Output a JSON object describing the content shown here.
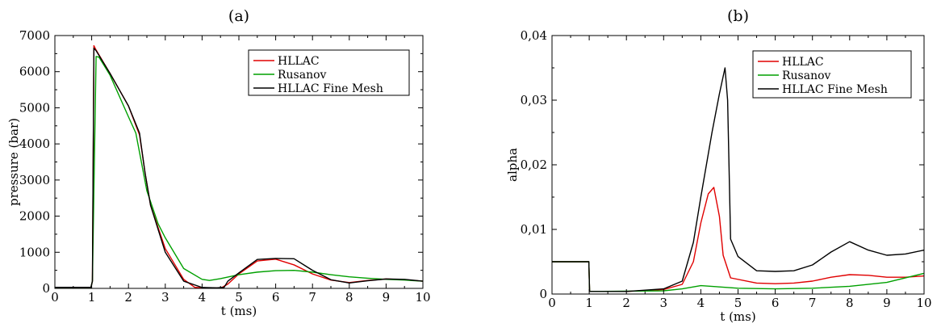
{
  "chart_data": [
    {
      "type": "line",
      "panel_label": "(a)",
      "xlabel": "t (ms)",
      "ylabel": "pressure (bar)",
      "xlim": [
        0,
        10
      ],
      "ylim": [
        0,
        7000
      ],
      "xticks": [
        0,
        1,
        2,
        3,
        4,
        5,
        6,
        7,
        8,
        9,
        10
      ],
      "yticks": [
        0,
        1000,
        2000,
        3000,
        4000,
        5000,
        6000,
        7000
      ],
      "ytick_labels": [
        "0",
        "1000",
        "2000",
        "3000",
        "4000",
        "5000",
        "6000",
        "7000"
      ],
      "grid": false,
      "legend_position": "top-right",
      "series": [
        {
          "name": "HLLAC",
          "color": "#e00000",
          "points": [
            [
              0,
              30
            ],
            [
              0.98,
              30
            ],
            [
              1.02,
              200
            ],
            [
              1.06,
              6720
            ],
            [
              1.12,
              6600
            ],
            [
              1.5,
              5950
            ],
            [
              2.0,
              5050
            ],
            [
              2.3,
              4250
            ],
            [
              2.45,
              3200
            ],
            [
              2.6,
              2300
            ],
            [
              3.0,
              1100
            ],
            [
              3.5,
              250
            ],
            [
              3.8,
              30
            ],
            [
              4.0,
              15
            ],
            [
              4.5,
              10
            ],
            [
              4.55,
              30
            ],
            [
              4.7,
              120
            ],
            [
              5.0,
              400
            ],
            [
              5.5,
              760
            ],
            [
              6.0,
              810
            ],
            [
              6.5,
              650
            ],
            [
              7.0,
              400
            ],
            [
              7.5,
              230
            ],
            [
              8.0,
              160
            ],
            [
              8.5,
              220
            ],
            [
              9.0,
              260
            ],
            [
              9.5,
              240
            ],
            [
              10,
              200
            ]
          ]
        },
        {
          "name": "Rusanov",
          "color": "#00a000",
          "points": [
            [
              0,
              30
            ],
            [
              0.98,
              30
            ],
            [
              1.02,
              200
            ],
            [
              1.12,
              6420
            ],
            [
              1.2,
              6400
            ],
            [
              1.5,
              5900
            ],
            [
              2.0,
              4750
            ],
            [
              2.2,
              4300
            ],
            [
              2.5,
              2700
            ],
            [
              2.8,
              1800
            ],
            [
              3.0,
              1400
            ],
            [
              3.5,
              550
            ],
            [
              4.0,
              250
            ],
            [
              4.2,
              220
            ],
            [
              4.5,
              270
            ],
            [
              5.0,
              380
            ],
            [
              5.5,
              450
            ],
            [
              6.0,
              490
            ],
            [
              6.5,
              500
            ],
            [
              7.0,
              450
            ],
            [
              7.5,
              380
            ],
            [
              8.0,
              320
            ],
            [
              8.5,
              280
            ],
            [
              9.0,
              250
            ],
            [
              9.5,
              230
            ],
            [
              10,
              200
            ]
          ]
        },
        {
          "name": "HLLAC Fine Mesh",
          "color": "#000000",
          "points": [
            [
              0,
              30
            ],
            [
              0.98,
              30
            ],
            [
              1.02,
              200
            ],
            [
              1.06,
              6650
            ],
            [
              1.12,
              6580
            ],
            [
              1.5,
              5950
            ],
            [
              2.0,
              5050
            ],
            [
              2.3,
              4300
            ],
            [
              2.45,
              3200
            ],
            [
              2.6,
              2300
            ],
            [
              3.0,
              1000
            ],
            [
              3.5,
              200
            ],
            [
              4.0,
              25
            ],
            [
              4.4,
              15
            ],
            [
              4.6,
              30
            ],
            [
              4.7,
              200
            ],
            [
              5.0,
              430
            ],
            [
              5.5,
              800
            ],
            [
              6.0,
              830
            ],
            [
              6.5,
              820
            ],
            [
              7.0,
              500
            ],
            [
              7.5,
              240
            ],
            [
              8.0,
              150
            ],
            [
              8.5,
              210
            ],
            [
              9.0,
              260
            ],
            [
              9.5,
              250
            ],
            [
              10,
              200
            ]
          ]
        }
      ]
    },
    {
      "type": "line",
      "panel_label": "(b)",
      "xlabel": "t (ms)",
      "ylabel": "alpha",
      "xlim": [
        0,
        10
      ],
      "ylim": [
        0,
        0.04
      ],
      "xticks": [
        0,
        1,
        2,
        3,
        4,
        5,
        6,
        7,
        8,
        9,
        10
      ],
      "yticks": [
        0,
        0.01,
        0.02,
        0.03,
        0.04
      ],
      "ytick_labels": [
        "0",
        "0,01",
        "0,02",
        "0,03",
        "0,04"
      ],
      "grid": false,
      "legend_position": "top-right",
      "series": [
        {
          "name": "HLLAC",
          "color": "#e00000",
          "points": [
            [
              0,
              0.005
            ],
            [
              0.99,
              0.005
            ],
            [
              1.01,
              0.0004
            ],
            [
              2.0,
              0.0004
            ],
            [
              3.0,
              0.0007
            ],
            [
              3.5,
              0.0015
            ],
            [
              3.8,
              0.005
            ],
            [
              4.0,
              0.011
            ],
            [
              4.2,
              0.0155
            ],
            [
              4.35,
              0.0165
            ],
            [
              4.5,
              0.012
            ],
            [
              4.6,
              0.006
            ],
            [
              4.8,
              0.0025
            ],
            [
              5.5,
              0.0017
            ],
            [
              6.0,
              0.0016
            ],
            [
              6.5,
              0.0017
            ],
            [
              7.0,
              0.002
            ],
            [
              7.5,
              0.0026
            ],
            [
              8.0,
              0.003
            ],
            [
              8.5,
              0.0029
            ],
            [
              9.0,
              0.0026
            ],
            [
              9.5,
              0.0026
            ],
            [
              10,
              0.0028
            ]
          ]
        },
        {
          "name": "Rusanov",
          "color": "#00a000",
          "points": [
            [
              0,
              0.005
            ],
            [
              0.99,
              0.005
            ],
            [
              1.01,
              0.0004
            ],
            [
              3.0,
              0.0005
            ],
            [
              3.5,
              0.0008
            ],
            [
              4.0,
              0.0013
            ],
            [
              4.5,
              0.0011
            ],
            [
              5.0,
              0.0009
            ],
            [
              6.0,
              0.0008
            ],
            [
              7.0,
              0.0009
            ],
            [
              8.0,
              0.0012
            ],
            [
              9.0,
              0.0018
            ],
            [
              10,
              0.0032
            ]
          ]
        },
        {
          "name": "HLLAC Fine Mesh",
          "color": "#000000",
          "points": [
            [
              0,
              0.005
            ],
            [
              0.99,
              0.005
            ],
            [
              1.01,
              0.0004
            ],
            [
              2.0,
              0.0004
            ],
            [
              3.0,
              0.0008
            ],
            [
              3.5,
              0.002
            ],
            [
              3.8,
              0.008
            ],
            [
              4.0,
              0.015
            ],
            [
              4.3,
              0.025
            ],
            [
              4.5,
              0.031
            ],
            [
              4.65,
              0.035
            ],
            [
              4.72,
              0.03
            ],
            [
              4.8,
              0.0085
            ],
            [
              5.0,
              0.0058
            ],
            [
              5.5,
              0.0036
            ],
            [
              6.0,
              0.0035
            ],
            [
              6.5,
              0.0036
            ],
            [
              7.0,
              0.0045
            ],
            [
              7.5,
              0.0065
            ],
            [
              8.0,
              0.0081
            ],
            [
              8.5,
              0.0068
            ],
            [
              9.0,
              0.006
            ],
            [
              9.5,
              0.0062
            ],
            [
              10,
              0.0068
            ]
          ]
        }
      ]
    }
  ]
}
